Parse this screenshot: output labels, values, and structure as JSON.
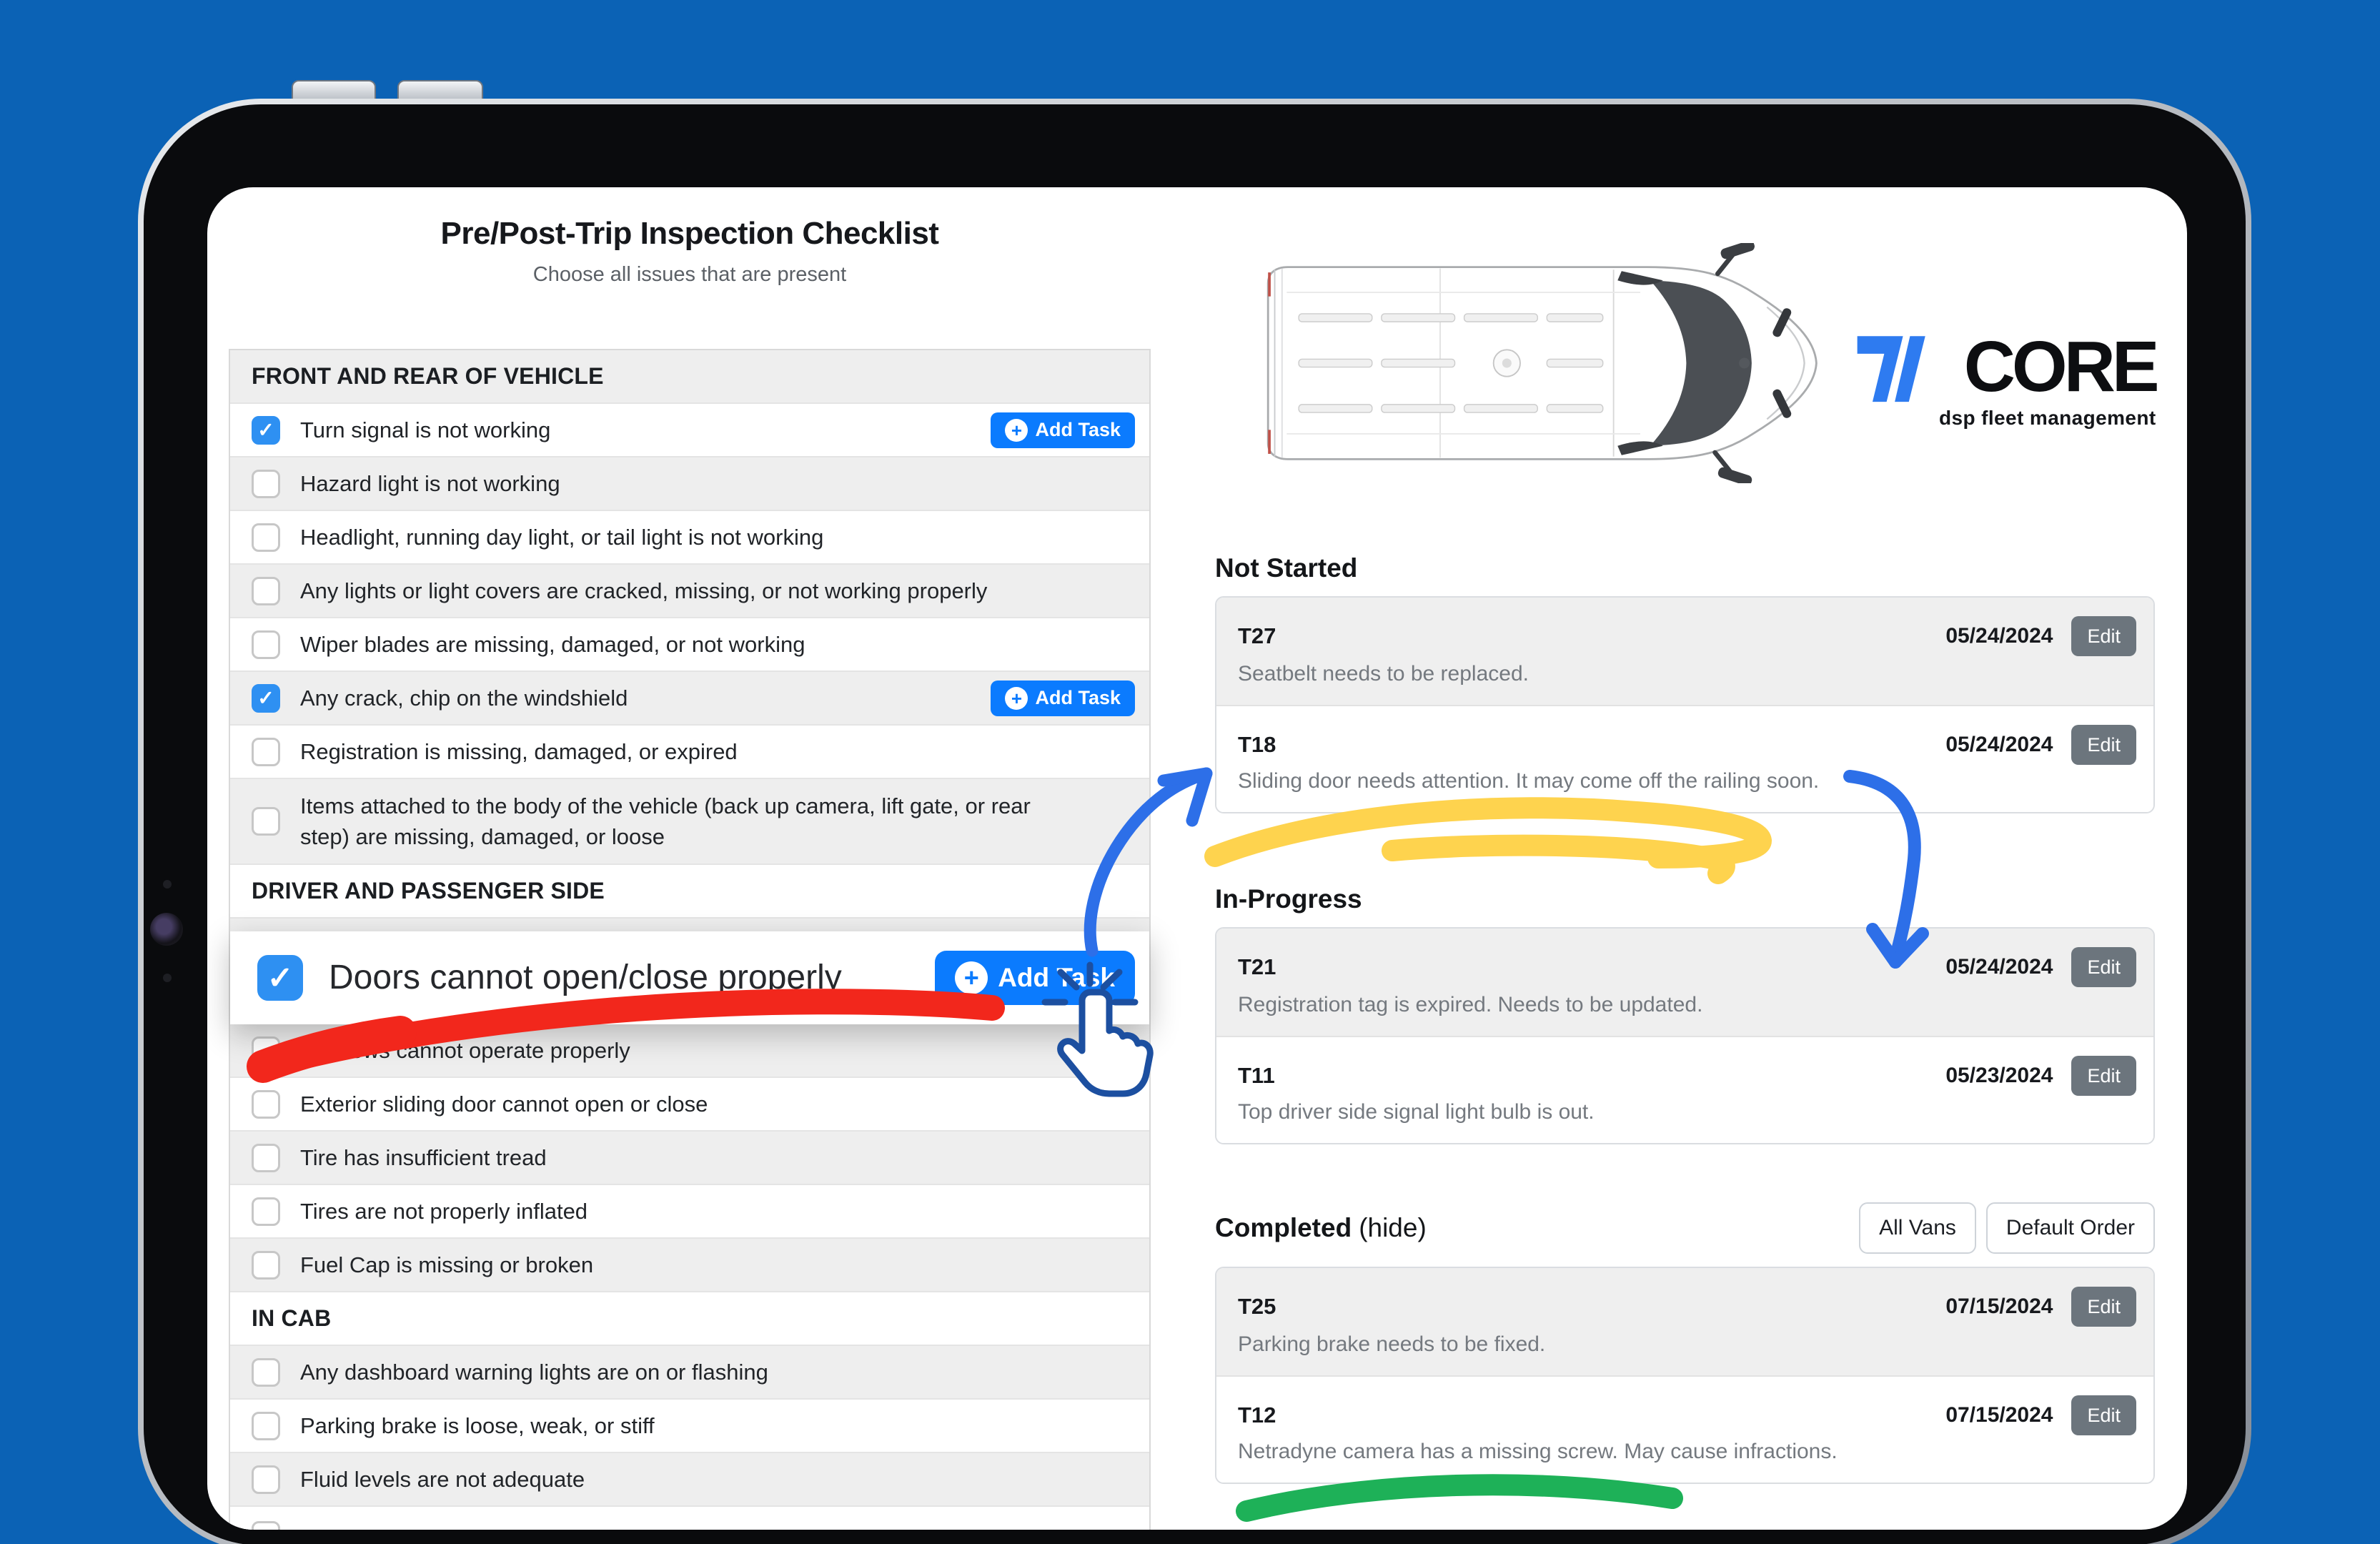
{
  "icons": {
    "check": "✓",
    "plus": "+"
  },
  "colors": {
    "background_blue": "#0b62b5",
    "checkbox_blue": "#2e90f2",
    "add_task_blue": "#0b7bfe",
    "edit_gray": "#6c757d",
    "marker_red": "#f2271c",
    "marker_yellow": "#fed34e",
    "marker_green": "#1eb158",
    "arrow_blue": "#2d6fe8"
  },
  "checklist": {
    "title": "Pre/Post-Trip Inspection Checklist",
    "subtitle": "Choose all issues that are present",
    "add_task_label": "Add Task",
    "rows": [
      {
        "type": "header",
        "bg": "gray",
        "label": "FRONT AND REAR OF VEHICLE"
      },
      {
        "type": "item",
        "bg": "white",
        "checked": true,
        "add_task": true,
        "label": "Turn signal is not working"
      },
      {
        "type": "item",
        "bg": "gray",
        "label": "Hazard light is not working"
      },
      {
        "type": "item",
        "bg": "white",
        "label": "Headlight, running day light, or tail light is not working"
      },
      {
        "type": "item",
        "bg": "gray",
        "label": "Any lights or light covers are cracked, missing, or not working properly"
      },
      {
        "type": "item",
        "bg": "white",
        "label": "Wiper blades are missing, damaged, or not working"
      },
      {
        "type": "item",
        "bg": "gray",
        "checked": true,
        "add_task": true,
        "label": "Any crack, chip on the windshield"
      },
      {
        "type": "item",
        "bg": "white",
        "label": "Registration is missing, damaged, or expired"
      },
      {
        "type": "item",
        "bg": "gray",
        "tall": true,
        "label": "Items attached to the body of the vehicle (back up camera, lift gate, or rear step) are missing, damaged, or loose"
      },
      {
        "type": "header",
        "bg": "white",
        "label": "DRIVER AND PASSENGER SIDE"
      },
      {
        "type": "spacer",
        "bg": "gray",
        "label": ""
      },
      {
        "type": "card",
        "bg": "white",
        "checked": true,
        "add_task": true,
        "label": "Doors cannot open/close properly"
      },
      {
        "type": "item",
        "bg": "gray",
        "label": "Windows cannot operate properly"
      },
      {
        "type": "item",
        "bg": "white",
        "label": "Exterior sliding door cannot open or close"
      },
      {
        "type": "item",
        "bg": "gray",
        "label": "Tire has insufficient tread"
      },
      {
        "type": "item",
        "bg": "white",
        "label": "Tires are not properly inflated"
      },
      {
        "type": "item",
        "bg": "gray",
        "label": "Fuel Cap is missing or broken"
      },
      {
        "type": "header",
        "bg": "white",
        "label": "IN CAB"
      },
      {
        "type": "item",
        "bg": "gray",
        "label": "Any dashboard warning lights are on or flashing"
      },
      {
        "type": "item",
        "bg": "white",
        "label": "Parking brake is loose, weak, or stiff"
      },
      {
        "type": "item",
        "bg": "gray",
        "label": "Fluid levels are not adequate"
      },
      {
        "type": "partial",
        "bg": "white",
        "label": ""
      }
    ]
  },
  "edit_label": "Edit",
  "logo": {
    "name": "CORE",
    "tagline": "dsp fleet management"
  },
  "boards": [
    {
      "heading": "Not Started",
      "items": [
        {
          "id": "T27",
          "date": "05/24/2024",
          "desc": "Seatbelt needs to be replaced."
        },
        {
          "id": "T18",
          "date": "05/24/2024",
          "desc": "Sliding door needs attention. It may come off the railing soon."
        }
      ]
    },
    {
      "heading": "In-Progress",
      "items": [
        {
          "id": "T21",
          "date": "05/24/2024",
          "desc": "Registration tag is expired. Needs to be updated."
        },
        {
          "id": "T11",
          "date": "05/23/2024",
          "desc": "Top driver side signal light bulb is out."
        }
      ]
    },
    {
      "heading": "Completed",
      "suffix": "(hide)",
      "filters": [
        "All Vans",
        "Default Order"
      ],
      "items": [
        {
          "id": "T25",
          "date": "07/15/2024",
          "desc": "Parking brake needs to be fixed."
        },
        {
          "id": "T12",
          "date": "07/15/2024",
          "desc": "Netradyne camera has a missing screw. May cause infractions."
        }
      ]
    }
  ]
}
